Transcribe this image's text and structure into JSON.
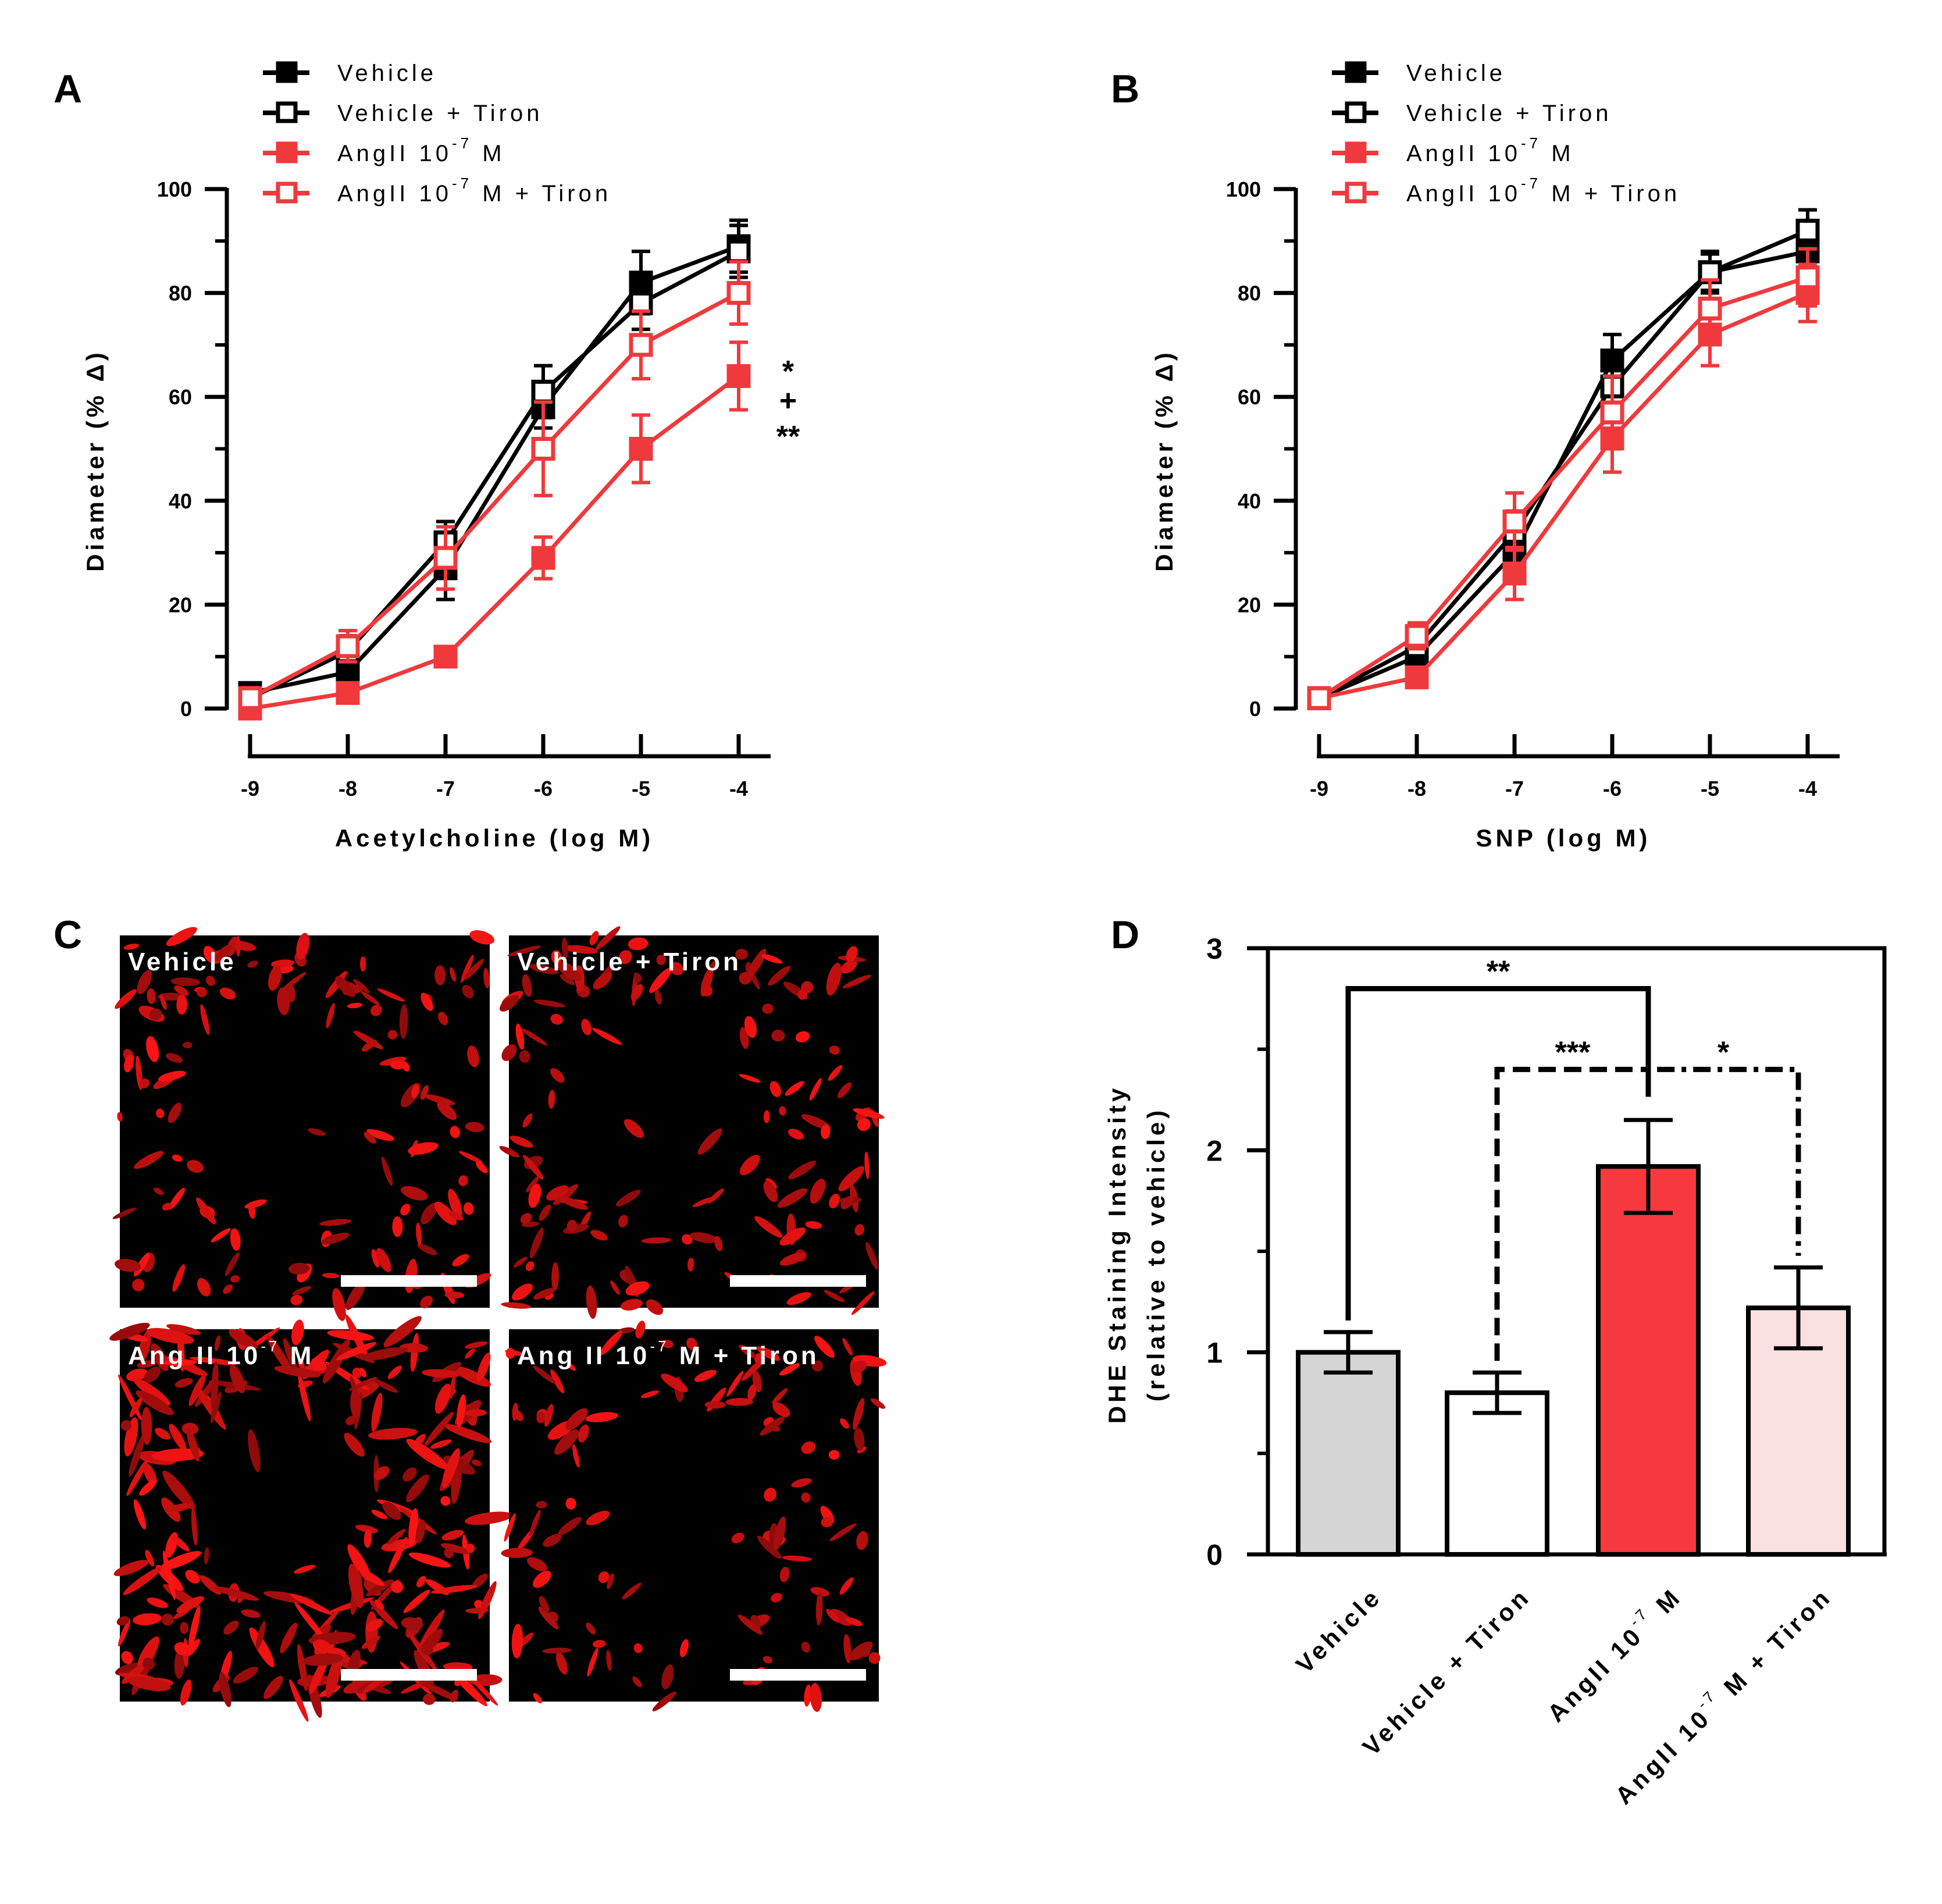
{
  "panels": {
    "A": "A",
    "B": "B",
    "C": "C",
    "D": "D"
  },
  "colors": {
    "black": "#000000",
    "red": "#f0393c",
    "red_fill": "#f6393e",
    "pink_fill": "#fbe0e1",
    "gray_fill": "#d5d5d5",
    "image_bg": "#000000",
    "image_fg": "#ff1a1a"
  },
  "legend": [
    {
      "main": "Vehicle",
      "sup": "",
      "tail": "",
      "color": "#000000",
      "filled": true
    },
    {
      "main": "Vehicle + Tiron",
      "sup": "",
      "tail": "",
      "color": "#000000",
      "filled": false
    },
    {
      "main": "AngII 10",
      "sup": "-7",
      "tail": " M",
      "color": "#f0393c",
      "filled": true
    },
    {
      "main": "AngII 10",
      "sup": "-7",
      "tail": " M + Tiron",
      "color": "#f0393c",
      "filled": false
    }
  ],
  "chart_data": [
    {
      "panel": "A",
      "type": "line",
      "xlabel": "Acetylcholine (log M)",
      "ylabel": "Diameter (% Δ)",
      "x": [
        -9,
        -8,
        -7,
        -6,
        -5,
        -4
      ],
      "xticks": [
        "-9",
        "-8",
        "-7",
        "-6",
        "-5",
        "-4"
      ],
      "yticks": [
        "0",
        "20",
        "40",
        "60",
        "80",
        "100"
      ],
      "ylim": [
        0,
        100
      ],
      "series": [
        {
          "name": "Vehicle",
          "values": [
            3,
            7,
            27,
            58,
            82,
            89
          ],
          "err": [
            1.5,
            2,
            6,
            4,
            6,
            5
          ]
        },
        {
          "name": "Vehicle + Tiron",
          "values": [
            2,
            11,
            32,
            61,
            78,
            88
          ],
          "err": [
            1.5,
            3,
            4,
            5,
            5,
            5
          ]
        },
        {
          "name": "AngII 10-7 M",
          "values": [
            0,
            3,
            10,
            29,
            50,
            64
          ],
          "err": [
            1,
            1.5,
            1.5,
            4,
            6.5,
            6.5
          ]
        },
        {
          "name": "AngII 10-7 M + Tiron",
          "values": [
            2,
            12,
            29,
            50,
            70,
            80
          ],
          "err": [
            2,
            3,
            6,
            9,
            6.5,
            6
          ]
        }
      ],
      "annotations": [
        "*",
        "+",
        "**"
      ]
    },
    {
      "panel": "B",
      "type": "line",
      "xlabel": "SNP (log M)",
      "ylabel": "Diameter (% Δ)",
      "x": [
        -9,
        -8,
        -7,
        -6,
        -5,
        -4
      ],
      "xticks": [
        "-9",
        "-8",
        "-7",
        "-6",
        "-5",
        "-4"
      ],
      "yticks": [
        "0",
        "20",
        "40",
        "60",
        "80",
        "100"
      ],
      "ylim": [
        0,
        100
      ],
      "series": [
        {
          "name": "Vehicle",
          "values": [
            2,
            10,
            30,
            67,
            84,
            88
          ],
          "err": [
            1,
            2,
            4,
            5,
            4,
            4
          ]
        },
        {
          "name": "Vehicle + Tiron",
          "values": [
            2,
            12,
            34,
            62,
            84,
            92
          ],
          "err": [
            1,
            2.5,
            4,
            5,
            3.5,
            4
          ]
        },
        {
          "name": "AngII 10-7 M",
          "values": [
            2,
            6,
            26,
            52,
            72,
            80
          ],
          "err": [
            1,
            1.5,
            5,
            6.5,
            6,
            5.5
          ]
        },
        {
          "name": "AngII 10-7 M + Tiron",
          "values": [
            2,
            14,
            36,
            57,
            77,
            83
          ],
          "err": [
            1,
            2.5,
            5.5,
            7,
            5.5,
            5.5
          ]
        }
      ]
    },
    {
      "panel": "D",
      "type": "bar",
      "ylabel_line1": "DHE Staining Intensity",
      "ylabel_line2": "(relative to vehicle)",
      "categories": [
        "Vehicle",
        "Vehicle + Tiron",
        "AngII 10-7 M",
        "AngII 10-7 M + Tiron"
      ],
      "category_labels": [
        {
          "main": "Vehicle",
          "sup": "",
          "tail": ""
        },
        {
          "main": "Vehicle + Tiron",
          "sup": "",
          "tail": ""
        },
        {
          "main": "AngII 10",
          "sup": "-7",
          "tail": " M"
        },
        {
          "main": "AngII 10",
          "sup": "-7",
          "tail": " M + Tiron"
        }
      ],
      "values": [
        1.0,
        0.8,
        1.92,
        1.22
      ],
      "err": [
        0.1,
        0.1,
        0.23,
        0.2
      ],
      "fills": [
        "#d5d5d5",
        "#ffffff",
        "#f6393e",
        "#fbe0e1"
      ],
      "yticks": [
        "0",
        "1",
        "2",
        "3"
      ],
      "ylim": [
        0,
        3
      ],
      "significance": [
        {
          "from": 0,
          "to": 2,
          "label": "**",
          "style": "solid",
          "y": 2.8
        },
        {
          "from": 1,
          "to": 2,
          "label": "***",
          "style": "dashed",
          "y": 2.4
        },
        {
          "from": 2,
          "to": 3,
          "label": "*",
          "style": "dotted",
          "y": 2.4
        }
      ]
    }
  ],
  "images": [
    {
      "main": "Vehicle",
      "sup": "",
      "tail": ""
    },
    {
      "main": "Vehicle + Tiron",
      "sup": "",
      "tail": ""
    },
    {
      "main": "Ang II 10",
      "sup": "-7",
      "tail": " M"
    },
    {
      "main": "Ang II 10",
      "sup": "-7",
      "tail": " M + Tiron"
    }
  ]
}
